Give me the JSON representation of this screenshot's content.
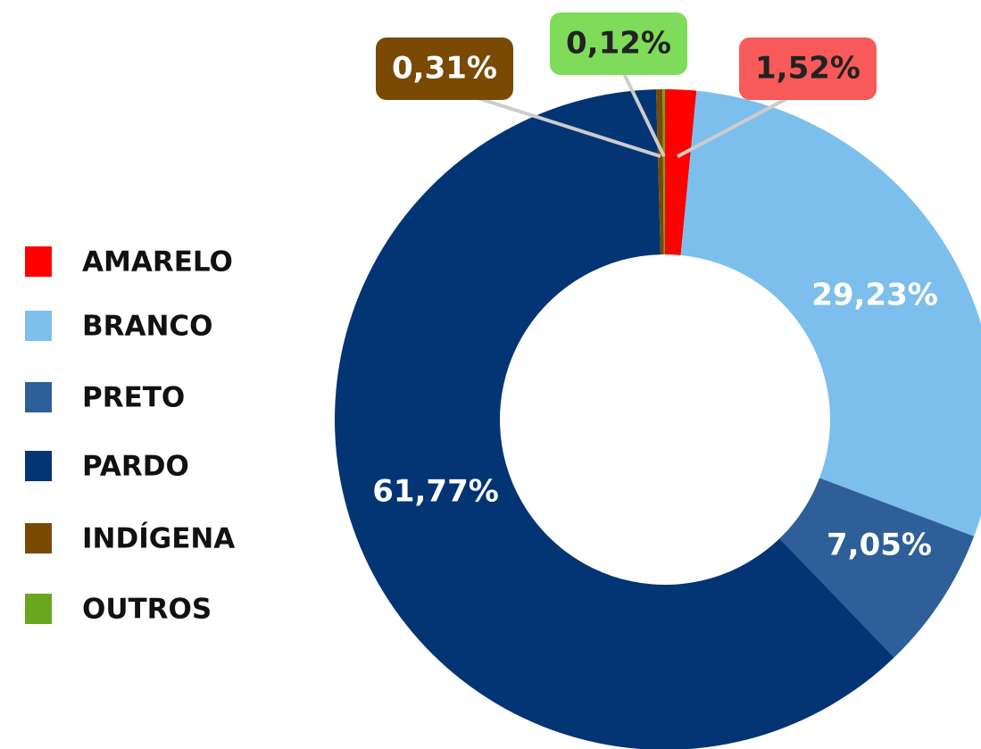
{
  "chart_data": {
    "type": "pie",
    "categories": [
      "AMARELO",
      "BRANCO",
      "PRETO",
      "PARDO",
      "INDÍGENA",
      "OUTROS"
    ],
    "values": [
      1.52,
      29.23,
      7.05,
      61.77,
      0.31,
      0.12
    ],
    "value_labels": [
      "1,52%",
      "29,23%",
      "7,05%",
      "61,77%",
      "0,31%",
      "0,12%"
    ],
    "colors": [
      "#ff0000",
      "#7dbfec",
      "#2e5f98",
      "#033473",
      "#7a4a05",
      "#6aa61e"
    ],
    "legend": "left"
  }
}
